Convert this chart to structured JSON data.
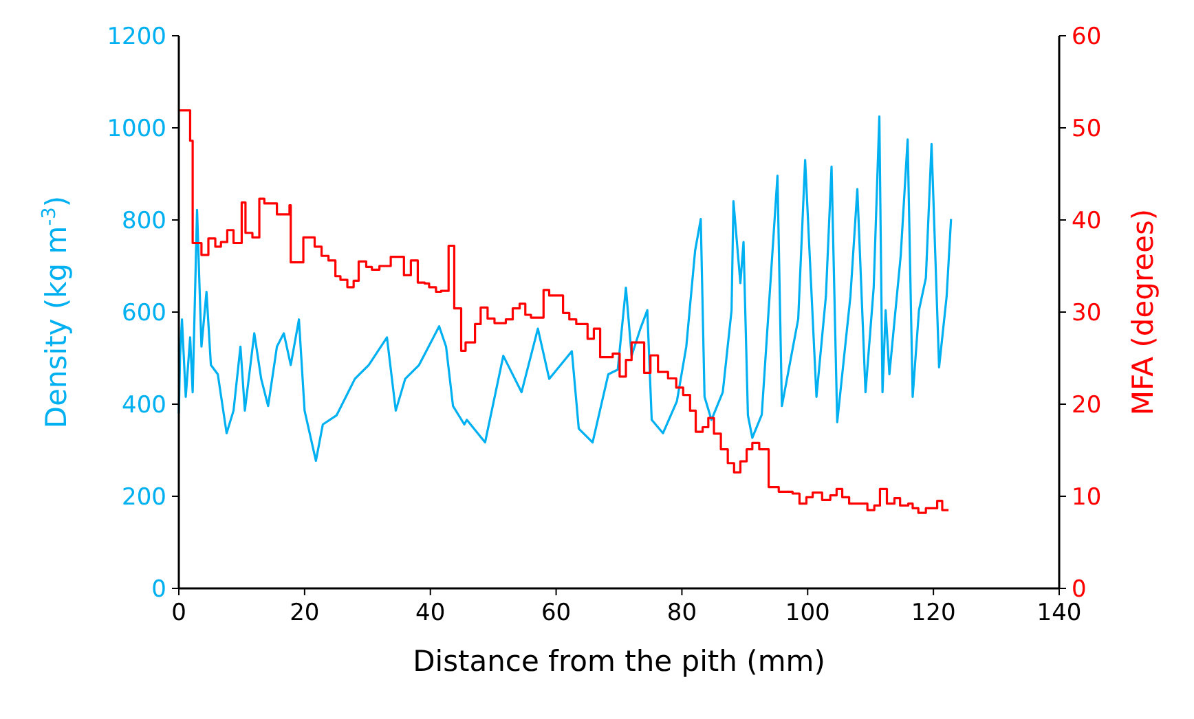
{
  "chart_data": {
    "type": "line",
    "xlabel": "Distance from the pith (mm)",
    "ylabel": "Density (kg m$^{-3}$)",
    "y2label": "MFA (degrees)",
    "xlim": [
      0,
      140
    ],
    "xticks": [
      0,
      20,
      40,
      60,
      80,
      100,
      120,
      140
    ],
    "ylim": [
      0,
      1200
    ],
    "yticks": [
      0,
      200,
      400,
      600,
      800,
      1000,
      1200
    ],
    "y2lim": [
      0,
      60
    ],
    "y2ticks": [
      0,
      10,
      20,
      30,
      40,
      50,
      60
    ],
    "series": [
      {
        "type": "line",
        "color": "#00b0f0",
        "x": [
          0,
          0.2,
          0.5,
          1.1,
          1.8,
          2.2,
          2.9,
          3.6,
          4.4,
          5.1,
          6.2,
          7.6,
          8.7,
          9.8,
          10.5,
          12.0,
          13.1,
          14.2,
          15.6,
          16.7,
          17.8,
          19.1,
          20.0,
          21.8,
          22.9,
          25.1,
          28.0,
          30.2,
          33.1,
          34.5,
          36.0,
          38.2,
          41.4,
          42.5,
          43.6,
          45.4,
          45.8,
          48.7,
          51.6,
          54.5,
          57.1,
          58.9,
          62.5,
          63.6,
          65.8,
          68.3,
          69.8,
          71.1,
          72.0,
          73.4,
          74.5,
          75.2,
          77.0,
          79.2,
          80.7,
          82.1,
          83.0,
          83.6,
          84.7,
          86.5,
          87.9,
          88.2,
          89.3,
          89.8,
          90.5,
          91.2,
          92.7,
          95.2,
          95.9,
          98.5,
          99.6,
          101.4,
          102.9,
          103.8,
          104.7,
          106.8,
          107.9,
          109.2,
          110.5,
          111.4,
          111.9,
          112.4,
          113.0,
          114.8,
          115.9,
          116.7,
          117.7,
          118.8,
          119.7,
          120.9,
          122.1,
          122.8
        ],
        "values": [
          380,
          505,
          584,
          416,
          545,
          426,
          822,
          525,
          644,
          485,
          465,
          337,
          386,
          525,
          386,
          554,
          455,
          396,
          525,
          554,
          485,
          584,
          386,
          277,
          356,
          376,
          455,
          485,
          545,
          386,
          455,
          485,
          569,
          525,
          396,
          356,
          366,
          317,
          505,
          426,
          564,
          455,
          515,
          347,
          317,
          465,
          475,
          653,
          505,
          564,
          604,
          366,
          337,
          406,
          525,
          733,
          802,
          416,
          366,
          426,
          604,
          841,
          663,
          752,
          376,
          327,
          377,
          896,
          396,
          585,
          930,
          416,
          634,
          916,
          361,
          634,
          867,
          426,
          653,
          1025,
          426,
          604,
          465,
          723,
          975,
          416,
          604,
          674,
          965,
          480,
          634,
          802
        ]
      },
      {
        "type": "step",
        "axis": "y2",
        "color": "#ff0000",
        "x": [
          0,
          1.8,
          2.2,
          3.6,
          4.7,
          5.8,
          6.7,
          7.7,
          8.7,
          10.0,
          10.6,
          11.7,
          12.8,
          13.6,
          15.6,
          17.6,
          17.8,
          19.8,
          21.6,
          22.7,
          23.8,
          24.9,
          25.7,
          26.8,
          27.8,
          28.6,
          29.8,
          30.7,
          31.9,
          33.7,
          35.8,
          36.9,
          38.0,
          39.1,
          39.8,
          40.9,
          41.7,
          42.9,
          43.8,
          44.9,
          45.6,
          46.9,
          47.1,
          48.0,
          49.1,
          50.2,
          52.0,
          53.1,
          54.2,
          55.1,
          56.0,
          58.0,
          58.9,
          61.1,
          62.1,
          63.2,
          65.0,
          66.0,
          67.0,
          69.0,
          70.1,
          71.1,
          72.0,
          74.0,
          75.0,
          76.2,
          77.8,
          79.1,
          80.2,
          81.3,
          82.2,
          83.3,
          84.2,
          85.1,
          86.2,
          87.3,
          88.3,
          89.3,
          90.3,
          91.2,
          92.3,
          93.8,
          95.4,
          97.6,
          98.7,
          99.8,
          100.8,
          102.3,
          103.6,
          104.6,
          105.5,
          106.6,
          109.5,
          110.6,
          111.5,
          112.6,
          113.8,
          114.7,
          116.0,
          116.7,
          117.6,
          118.8,
          120.6,
          121.4,
          122.4
        ],
        "values": [
          51.9,
          48.6,
          37.5,
          36.2,
          38.0,
          37.1,
          37.6,
          38.9,
          37.5,
          41.9,
          38.6,
          38.1,
          42.3,
          41.8,
          40.6,
          41.6,
          35.4,
          38.1,
          37.1,
          36.1,
          35.6,
          33.9,
          33.5,
          32.7,
          33.4,
          35.5,
          34.9,
          34.6,
          35.0,
          36.0,
          34.0,
          35.6,
          33.2,
          33.1,
          32.7,
          32.2,
          32.3,
          37.2,
          30.4,
          25.8,
          26.7,
          26.7,
          28.7,
          30.5,
          29.3,
          28.8,
          29.2,
          30.4,
          30.9,
          29.7,
          29.4,
          32.4,
          31.8,
          29.9,
          29.2,
          28.7,
          27.1,
          28.2,
          25.1,
          25.5,
          23.0,
          24.8,
          26.7,
          23.4,
          25.3,
          23.5,
          22.8,
          21.8,
          21.0,
          19.3,
          17.0,
          17.5,
          18.5,
          16.8,
          15.1,
          13.6,
          12.6,
          13.8,
          15.1,
          15.8,
          15.1,
          11.0,
          10.5,
          10.3,
          9.2,
          9.9,
          10.4,
          9.6,
          10.1,
          10.8,
          9.9,
          9.2,
          8.5,
          9.0,
          10.8,
          9.2,
          9.8,
          9.0,
          9.2,
          8.7,
          8.2,
          8.7,
          9.5,
          8.5,
          8.5
        ]
      }
    ]
  }
}
